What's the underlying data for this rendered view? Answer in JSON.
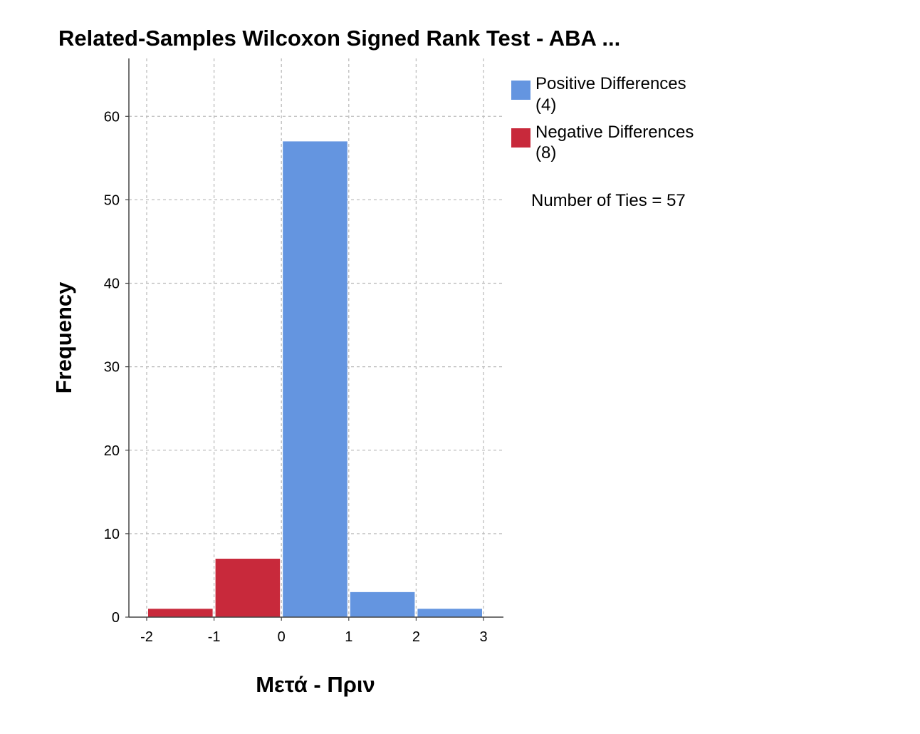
{
  "chart_data": {
    "type": "bar",
    "title": "Related-Samples Wilcoxon Signed Rank Test - ABA ...",
    "xlabel": "Μετά - Πριν",
    "ylabel": "Frequency",
    "xlim": [
      -2,
      3
    ],
    "ylim": [
      0,
      66
    ],
    "x_ticks": [
      -2,
      -1,
      0,
      1,
      2,
      3
    ],
    "y_ticks": [
      0,
      10,
      20,
      30,
      40,
      50,
      60
    ],
    "grid": true,
    "bins": [
      {
        "x0": -2,
        "x1": -1,
        "value": 1,
        "series": "negative"
      },
      {
        "x0": -1,
        "x1": 0,
        "value": 7,
        "series": "negative"
      },
      {
        "x0": 0,
        "x1": 1,
        "value": 57,
        "series": "positive"
      },
      {
        "x0": 1,
        "x1": 2,
        "value": 3,
        "series": "positive"
      },
      {
        "x0": 2,
        "x1": 3,
        "value": 1,
        "series": "positive"
      }
    ],
    "series": [
      {
        "key": "positive",
        "line1": "Positive Differences",
        "line2": "(4)",
        "color": "#6495e0"
      },
      {
        "key": "negative",
        "line1": "Negative Differences",
        "line2": "(8)",
        "color": "#c8293b"
      }
    ],
    "legend_position": "top-right",
    "annotation": "Number of Ties = 57"
  }
}
